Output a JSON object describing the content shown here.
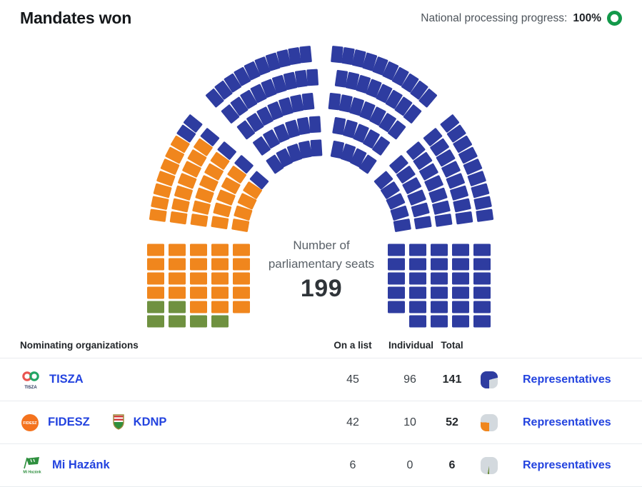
{
  "header": {
    "title": "Mandates won",
    "progress_label": "National processing progress:",
    "progress_value": "100%",
    "progress_color": "#13994a"
  },
  "chart_data": {
    "type": "parliament",
    "title": "Mandates won",
    "total_seats": 199,
    "center_label": "Number of parliamentary seats",
    "center_value": "199",
    "legend_position": "table-below",
    "parties": [
      {
        "name": "TISZA",
        "color": "#2e3ca0",
        "seats": 141,
        "on_list": 45,
        "individual": 96
      },
      {
        "name": "FIDESZ-KDNP",
        "color": "#f0861d",
        "seats": 52,
        "on_list": 42,
        "individual": 10
      },
      {
        "name": "Mi Hazánk",
        "color": "#6f9140",
        "seats": 6,
        "on_list": 6,
        "individual": 0
      }
    ],
    "layout_hint": {
      "arc_rings": [
        19,
        23,
        28,
        33,
        38
      ],
      "arc_seats_left_party": 29,
      "aisles_deg": [
        135,
        90,
        45
      ],
      "left_block": {
        "cols": 5,
        "rows": 6,
        "missing": [
          "c4r5"
        ],
        "green_cells": [
          "c0r4",
          "c0r5",
          "c1r4",
          "c1r5",
          "c2r5",
          "c3r5"
        ]
      },
      "right_block": {
        "cols": 5,
        "rows": 6,
        "missing": [
          "c0r5"
        ]
      }
    }
  },
  "table": {
    "headers": {
      "org": "Nominating organizations",
      "on_list": "On a list",
      "individual": "Individual",
      "total": "Total"
    },
    "inactive_color": "#d3d9de",
    "rows": [
      {
        "orgs": [
          {
            "label": "TISZA",
            "logo": "tisza-logo"
          }
        ],
        "on_list": 45,
        "individual": 96,
        "total": 141,
        "color": "#2e3ca0",
        "link_label": "Representatives"
      },
      {
        "orgs": [
          {
            "label": "FIDESZ",
            "logo": "fidesz-logo"
          },
          {
            "label": "KDNP",
            "logo": "kdnp-logo"
          }
        ],
        "on_list": 42,
        "individual": 10,
        "total": 52,
        "color": "#f0861d",
        "link_label": "Representatives"
      },
      {
        "orgs": [
          {
            "label": "Mi Hazánk",
            "logo": "mihazank-logo"
          }
        ],
        "on_list": 6,
        "individual": 0,
        "total": 6,
        "color": "#6f9140",
        "link_label": "Representatives"
      }
    ]
  }
}
